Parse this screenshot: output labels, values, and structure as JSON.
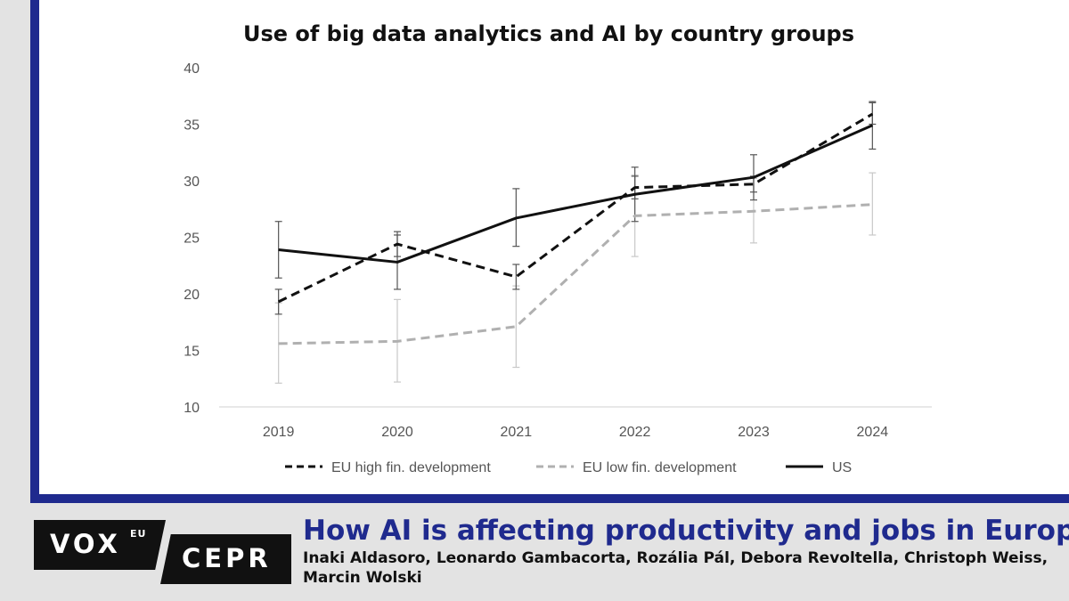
{
  "chart_data": {
    "type": "line",
    "title": "Use of big data analytics and AI by country groups",
    "categories": [
      "2019",
      "2020",
      "2021",
      "2022",
      "2023",
      "2024"
    ],
    "ylim": [
      10,
      40
    ],
    "yticks": [
      "10",
      "15",
      "20",
      "25",
      "30",
      "35",
      "40"
    ],
    "xlabel": "",
    "ylabel": "",
    "legend_position": "bottom",
    "series": [
      {
        "name": "EU high fin. development",
        "style": "dashed",
        "color": "#111111",
        "values": [
          19.3,
          24.4,
          21.5,
          29.4,
          29.7,
          35.9
        ],
        "err_low": [
          18.2,
          23.3,
          20.4,
          28.4,
          29.0,
          35.0
        ],
        "err_high": [
          20.4,
          25.5,
          22.6,
          30.4,
          30.4,
          36.9
        ]
      },
      {
        "name": "EU low fin. development",
        "style": "dashed",
        "color": "#b0b0b0",
        "values": [
          15.6,
          15.8,
          17.1,
          26.9,
          27.3,
          27.9
        ],
        "err_low": [
          12.1,
          12.2,
          13.5,
          23.3,
          24.5,
          25.2
        ],
        "err_high": [
          19.2,
          19.5,
          20.7,
          30.5,
          30.2,
          30.7
        ]
      },
      {
        "name": "US",
        "style": "solid",
        "color": "#111111",
        "values": [
          23.9,
          22.8,
          26.7,
          28.8,
          30.3,
          34.9
        ],
        "err_low": [
          21.4,
          20.4,
          24.2,
          26.4,
          28.3,
          32.8
        ],
        "err_high": [
          26.4,
          25.2,
          29.3,
          31.2,
          32.3,
          37.0
        ]
      }
    ]
  },
  "footer": {
    "logo_vox": "VOX",
    "logo_eu": "EU",
    "logo_cepr": "CEPR",
    "article_title": "How AI is affecting productivity and jobs in Europe",
    "authors": "Inaki Aldasoro, Leonardo Gambacorta, Rozália Pál, Debora Revoltella, Christoph Weiss, Marcin Wolski"
  },
  "colors": {
    "brand_blue": "#1f2a8e",
    "background": "#e3e3e3"
  }
}
